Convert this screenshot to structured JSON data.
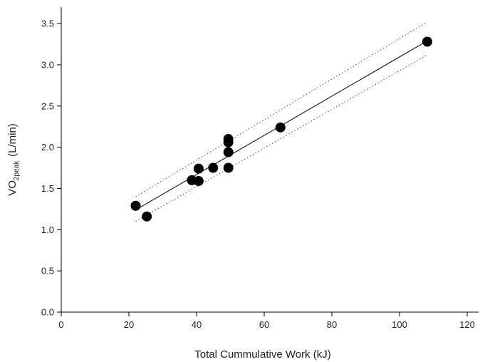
{
  "chart_data": {
    "type": "scatter",
    "xlabel": "Total Cummulative Work (kJ)",
    "ylabel": {
      "prefix": "VO",
      "subscript": "2peak",
      "suffix": "(L/min)"
    },
    "xlim": [
      0,
      120
    ],
    "ylim": [
      0,
      3.5
    ],
    "x_ticks": [
      "0",
      "20",
      "40",
      "60",
      "80",
      "100",
      "120"
    ],
    "y_ticks": [
      "0.0",
      "0.5",
      "1.0",
      "1.5",
      "2.0",
      "2.5",
      "3.0",
      "3.5"
    ],
    "grid": false,
    "points": [
      {
        "x": 22.0,
        "y": 1.29
      },
      {
        "x": 25.3,
        "y": 1.16
      },
      {
        "x": 38.6,
        "y": 1.6
      },
      {
        "x": 40.6,
        "y": 1.59
      },
      {
        "x": 40.6,
        "y": 1.74
      },
      {
        "x": 44.9,
        "y": 1.75
      },
      {
        "x": 49.4,
        "y": 1.75
      },
      {
        "x": 49.4,
        "y": 1.94
      },
      {
        "x": 49.4,
        "y": 2.06
      },
      {
        "x": 49.4,
        "y": 2.1
      },
      {
        "x": 64.8,
        "y": 2.24
      },
      {
        "x": 108.2,
        "y": 3.28
      }
    ],
    "regression_line": {
      "x": [
        22.0,
        108.2
      ],
      "y": [
        1.24,
        3.29
      ]
    },
    "confidence_bands": {
      "upper": {
        "x": [
          22.0,
          108.2
        ],
        "y": [
          1.4,
          3.52
        ]
      },
      "lower": {
        "x": [
          22.0,
          108.2
        ],
        "y": [
          1.1,
          3.12
        ]
      }
    }
  }
}
